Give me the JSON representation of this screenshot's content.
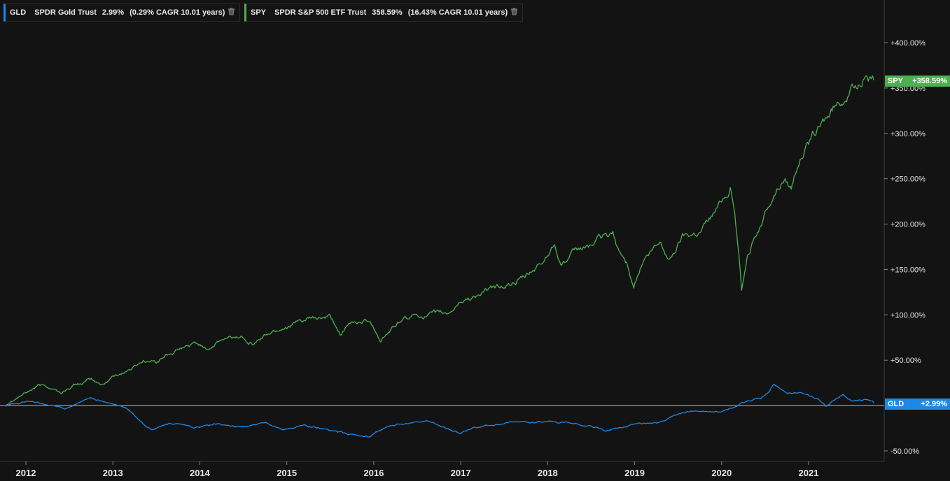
{
  "legend": {
    "gld": {
      "symbol": "GLD",
      "name": "SPDR Gold Trust",
      "return": "2.99%",
      "cagr": "(0.29% CAGR 10.01 years)",
      "color": "#1e88e5",
      "icon": "trash-icon"
    },
    "spy": {
      "symbol": "SPY",
      "name": "SPDR S&P 500 ETF Trust",
      "return": "358.59%",
      "cagr": "(16.43% CAGR 10.01 years)",
      "color": "#4caf50",
      "icon": "trash-icon"
    }
  },
  "price_tags": {
    "spy": {
      "symbol": "SPY",
      "value": "+358.59%",
      "color": "#4caf50"
    },
    "gld": {
      "symbol": "GLD",
      "value": "+2.99%",
      "color": "#1e88e5"
    }
  },
  "chart_data": {
    "type": "line",
    "y_unit": "%",
    "ylim": [
      -50,
      440
    ],
    "xlim": [
      2011.75,
      2021.83
    ],
    "y_ticks": [
      400,
      350,
      300,
      250,
      200,
      150,
      100,
      50,
      -50
    ],
    "y_tick_labels": [
      "+400.00%",
      "+350.00%",
      "+300.00%",
      "+250.00%",
      "+200.00%",
      "+150.00%",
      "+100.00%",
      "+50.00%",
      "-50.00%"
    ],
    "x_ticks": [
      2012,
      2013,
      2014,
      2015,
      2016,
      2017,
      2018,
      2019,
      2020,
      2021
    ],
    "x_tick_labels": [
      "2012",
      "2013",
      "2014",
      "2015",
      "2016",
      "2017",
      "2018",
      "2019",
      "2020",
      "2021"
    ],
    "baseline": 0,
    "grid": false,
    "legend_position": "top-left",
    "series": [
      {
        "name": "SPY",
        "color": "#4caf50",
        "points": [
          [
            2011.75,
            0
          ],
          [
            2011.85,
            8
          ],
          [
            2012.0,
            15
          ],
          [
            2012.15,
            22
          ],
          [
            2012.3,
            20
          ],
          [
            2012.4,
            14
          ],
          [
            2012.55,
            22
          ],
          [
            2012.75,
            28
          ],
          [
            2012.87,
            22
          ],
          [
            2013.0,
            32
          ],
          [
            2013.2,
            40
          ],
          [
            2013.35,
            50
          ],
          [
            2013.5,
            48
          ],
          [
            2013.6,
            55
          ],
          [
            2013.75,
            60
          ],
          [
            2013.95,
            68
          ],
          [
            2014.1,
            64
          ],
          [
            2014.25,
            72
          ],
          [
            2014.5,
            76
          ],
          [
            2014.62,
            70
          ],
          [
            2014.8,
            80
          ],
          [
            2015.0,
            88
          ],
          [
            2015.25,
            94
          ],
          [
            2015.5,
            96
          ],
          [
            2015.62,
            78
          ],
          [
            2015.75,
            90
          ],
          [
            2015.95,
            95
          ],
          [
            2016.08,
            74
          ],
          [
            2016.3,
            92
          ],
          [
            2016.5,
            100
          ],
          [
            2016.85,
            100
          ],
          [
            2017.0,
            115
          ],
          [
            2017.25,
            124
          ],
          [
            2017.5,
            132
          ],
          [
            2017.75,
            140
          ],
          [
            2017.95,
            158
          ],
          [
            2018.08,
            180
          ],
          [
            2018.16,
            158
          ],
          [
            2018.35,
            170
          ],
          [
            2018.6,
            182
          ],
          [
            2018.75,
            188
          ],
          [
            2018.82,
            170
          ],
          [
            2018.92,
            154
          ],
          [
            2018.99,
            135
          ],
          [
            2019.1,
            160
          ],
          [
            2019.3,
            178
          ],
          [
            2019.4,
            160
          ],
          [
            2019.55,
            188
          ],
          [
            2019.75,
            193
          ],
          [
            2019.95,
            218
          ],
          [
            2020.1,
            244
          ],
          [
            2020.15,
            215
          ],
          [
            2020.2,
            165
          ],
          [
            2020.23,
            128
          ],
          [
            2020.3,
            170
          ],
          [
            2020.45,
            200
          ],
          [
            2020.6,
            234
          ],
          [
            2020.72,
            252
          ],
          [
            2020.8,
            242
          ],
          [
            2020.88,
            272
          ],
          [
            2021.0,
            288
          ],
          [
            2021.2,
            315
          ],
          [
            2021.4,
            340
          ],
          [
            2021.55,
            352
          ],
          [
            2021.65,
            368
          ],
          [
            2021.72,
            360
          ],
          [
            2021.75,
            358.59
          ]
        ]
      },
      {
        "name": "GLD",
        "color": "#1e88e5",
        "points": [
          [
            2011.75,
            0
          ],
          [
            2011.9,
            2
          ],
          [
            2012.05,
            5
          ],
          [
            2012.25,
            0
          ],
          [
            2012.45,
            -3
          ],
          [
            2012.6,
            3
          ],
          [
            2012.75,
            8
          ],
          [
            2012.95,
            3
          ],
          [
            2013.15,
            -3
          ],
          [
            2013.3,
            -15
          ],
          [
            2013.45,
            -27
          ],
          [
            2013.65,
            -19
          ],
          [
            2013.95,
            -25
          ],
          [
            2014.2,
            -20
          ],
          [
            2014.45,
            -24
          ],
          [
            2014.75,
            -20
          ],
          [
            2014.95,
            -26
          ],
          [
            2015.2,
            -22
          ],
          [
            2015.5,
            -27
          ],
          [
            2015.7,
            -31
          ],
          [
            2015.95,
            -34
          ],
          [
            2016.1,
            -26
          ],
          [
            2016.3,
            -20
          ],
          [
            2016.6,
            -17
          ],
          [
            2016.85,
            -25
          ],
          [
            2017.0,
            -30
          ],
          [
            2017.25,
            -22
          ],
          [
            2017.5,
            -20
          ],
          [
            2017.75,
            -18
          ],
          [
            2018.0,
            -18
          ],
          [
            2018.25,
            -20
          ],
          [
            2018.5,
            -23
          ],
          [
            2018.65,
            -28
          ],
          [
            2018.85,
            -24
          ],
          [
            2019.0,
            -20
          ],
          [
            2019.3,
            -18
          ],
          [
            2019.5,
            -10
          ],
          [
            2019.7,
            -5
          ],
          [
            2019.95,
            -8
          ],
          [
            2020.15,
            -2
          ],
          [
            2020.3,
            5
          ],
          [
            2020.45,
            8
          ],
          [
            2020.55,
            15
          ],
          [
            2020.6,
            23
          ],
          [
            2020.75,
            15
          ],
          [
            2020.95,
            13
          ],
          [
            2021.1,
            7
          ],
          [
            2021.2,
            0
          ],
          [
            2021.4,
            12
          ],
          [
            2021.5,
            5
          ],
          [
            2021.65,
            6
          ],
          [
            2021.75,
            2.99
          ]
        ]
      }
    ]
  }
}
